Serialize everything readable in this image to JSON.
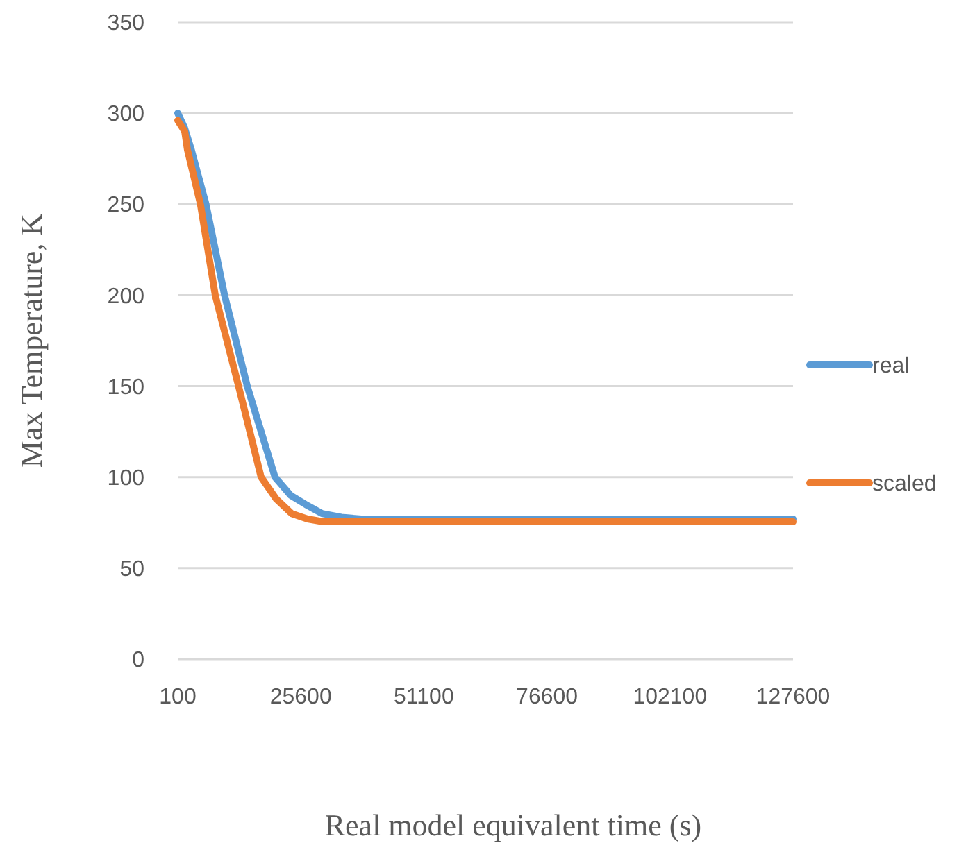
{
  "chart_data": {
    "type": "line",
    "xlabel": "Real model equivalent time (s)",
    "ylabel": "Max Temperature, K",
    "xlim": [
      100,
      127600
    ],
    "xticks": [
      100,
      25600,
      51100,
      76600,
      102100,
      127600
    ],
    "ylim": [
      0,
      350
    ],
    "yticks": [
      0,
      50,
      100,
      150,
      200,
      250,
      300,
      350
    ],
    "grid": "y",
    "legend": "right",
    "marker": "none",
    "line_style": "solid",
    "series": [
      {
        "name": "real",
        "color": "#5b9bd5",
        "x": [
          100,
          1500,
          2900,
          5950,
          9800,
          14500,
          20250,
          23500,
          26600,
          30000,
          34000,
          38100,
          50000,
          80000,
          127600
        ],
        "values": [
          300,
          292,
          280,
          250,
          200,
          150,
          100,
          90,
          85,
          80,
          78,
          77,
          77,
          77,
          77
        ]
      },
      {
        "name": "scaled",
        "color": "#ed7d31",
        "x": [
          100,
          1540,
          2100,
          4800,
          7870,
          12700,
          17370,
          20500,
          23700,
          27000,
          30300,
          40000,
          80000,
          127600
        ],
        "values": [
          296,
          290,
          280,
          250,
          200,
          150,
          100,
          88,
          80,
          77,
          75.5,
          75.5,
          75.5,
          75.5
        ]
      }
    ]
  }
}
